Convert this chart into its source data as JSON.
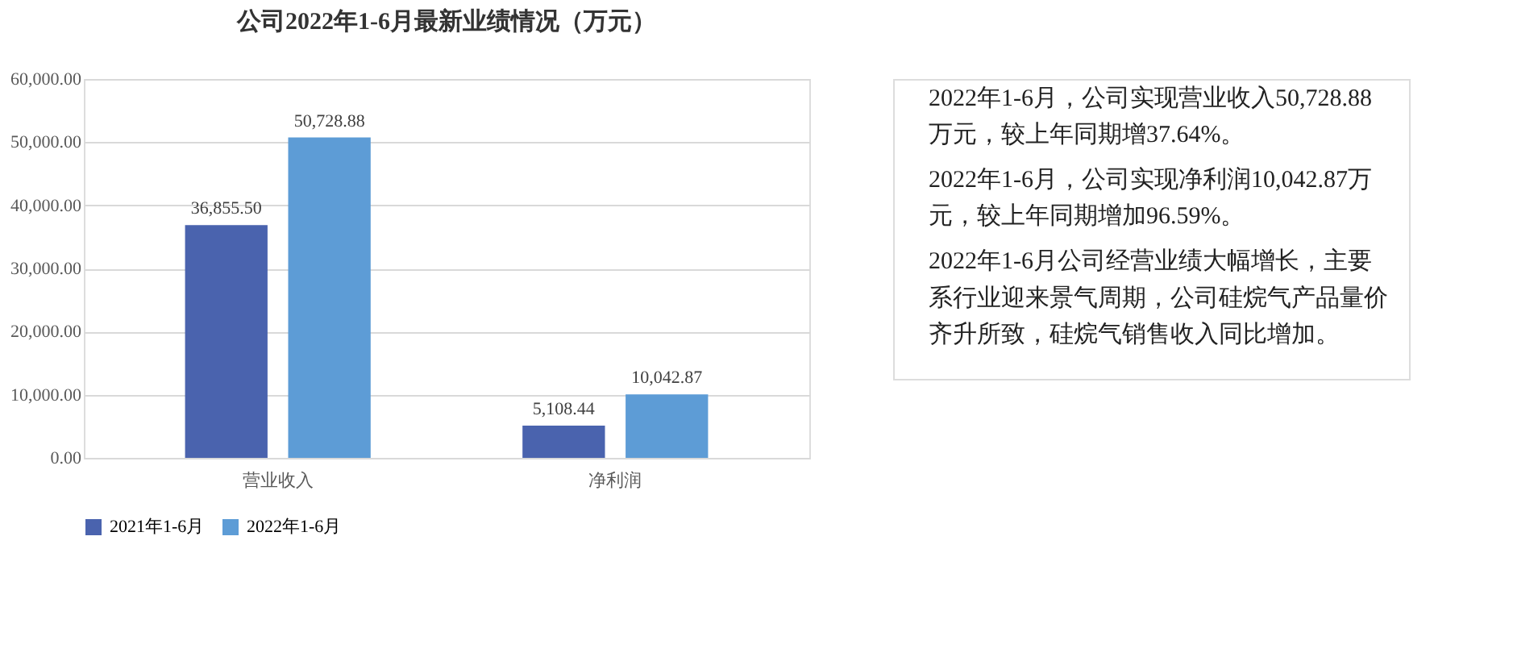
{
  "chart_data": [
    {
      "type": "bar",
      "title": "公司2022年1-6月最新业绩情况（万元）",
      "categories": [
        "营业收入",
        "净利润"
      ],
      "series": [
        {
          "name": "2021年1-6月",
          "color": "#4a63ae",
          "values": [
            36855.5,
            5108.44
          ],
          "value_labels": [
            "36,855.50",
            "5,108.44"
          ]
        },
        {
          "name": "2022年1-6月",
          "color": "#5d9cd6",
          "values": [
            50728.88,
            10042.87
          ],
          "value_labels": [
            "50,728.88",
            "10,042.87"
          ]
        }
      ],
      "ylim": [
        0,
        60000
      ],
      "yticks": [
        {
          "value": 0,
          "label": "0.00"
        },
        {
          "value": 10000,
          "label": "10,000.00"
        },
        {
          "value": 20000,
          "label": "20,000.00"
        },
        {
          "value": 30000,
          "label": "30,000.00"
        },
        {
          "value": 40000,
          "label": "40,000.00"
        },
        {
          "value": 50000,
          "label": "50,000.00"
        },
        {
          "value": 60000,
          "label": "60,000.00"
        }
      ],
      "grid": "y",
      "legend": "bottom"
    },
    {
      "type": "other",
      "annotations": [
        "2022年1-6月，公司实现营业收入50,728.88万元，较上年同期增37.64%。",
        "2022年1-6月，公司实现净利润10,042.87万元，较上年同期增加96.59%。",
        "2022年1-6月公司经营业绩大幅增长，主要系行业迎来景气周期，公司硅烷气产品量价齐升所致，硅烷气销售收入同比增加。"
      ]
    }
  ]
}
